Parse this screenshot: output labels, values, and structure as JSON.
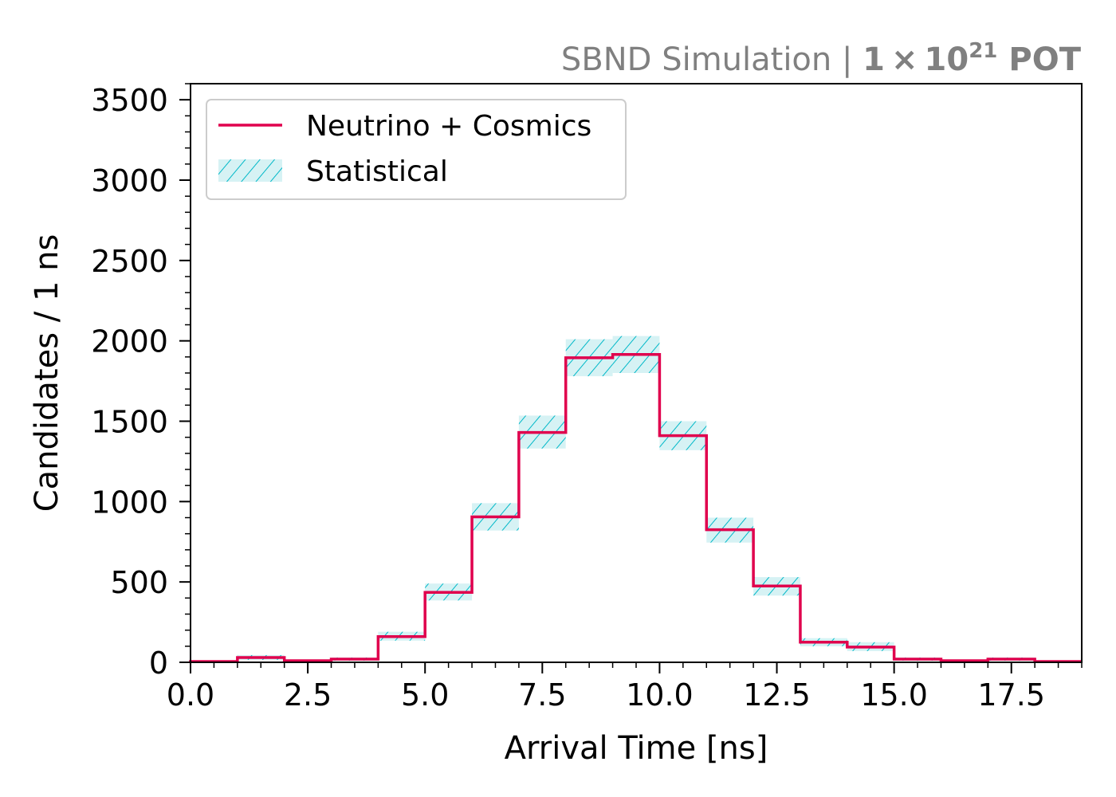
{
  "header": {
    "simulation_label": "SBND Simulation | ",
    "exposure_mantissa": "1",
    "exposure_times": "×",
    "exposure_base": "10",
    "exposure_exponent": "21",
    "exposure_unit": "POT"
  },
  "colors": {
    "histogram_line": "#e0004d",
    "stat_band_fill": "#d6f2f4",
    "stat_band_hatch": "#00b8c8",
    "header_text": "#808080",
    "axis": "#000000"
  },
  "chart_data": {
    "type": "histogram",
    "xlabel": "Arrival Time [ns]",
    "ylabel": "Candidates / 1 ns",
    "xlim": [
      0,
      19
    ],
    "ylim": [
      0,
      3600
    ],
    "xticks": [
      0.0,
      2.5,
      5.0,
      7.5,
      10.0,
      12.5,
      15.0,
      17.5
    ],
    "xtick_labels": [
      "0.0",
      "2.5",
      "5.0",
      "7.5",
      "10.0",
      "12.5",
      "15.0",
      "17.5"
    ],
    "yticks": [
      0,
      500,
      1000,
      1500,
      2000,
      2500,
      3000,
      3500
    ],
    "ytick_labels": [
      "0",
      "500",
      "1000",
      "1500",
      "2000",
      "2500",
      "3000",
      "3500"
    ],
    "grid": false,
    "legend_position": "top-left",
    "bin_edges": [
      0,
      1,
      2,
      3,
      4,
      5,
      6,
      7,
      8,
      9,
      10,
      11,
      12,
      13,
      14,
      15,
      16,
      17,
      18,
      19
    ],
    "series": [
      {
        "name": "Neutrino + Cosmics",
        "style": "step",
        "values": [
          5,
          30,
          10,
          20,
          160,
          435,
          905,
          1430,
          1895,
          1915,
          1410,
          825,
          475,
          125,
          95,
          20,
          10,
          20,
          5
        ]
      }
    ],
    "uncertainty_bands": [
      {
        "name": "Statistical",
        "style": "hatched",
        "low": [
          0,
          15,
          5,
          10,
          135,
          385,
          820,
          1330,
          1780,
          1800,
          1320,
          745,
          415,
          100,
          70,
          10,
          5,
          10,
          0
        ],
        "high": [
          10,
          45,
          15,
          30,
          190,
          490,
          990,
          1535,
          2010,
          2030,
          1500,
          900,
          530,
          150,
          125,
          30,
          15,
          30,
          10
        ]
      }
    ]
  }
}
